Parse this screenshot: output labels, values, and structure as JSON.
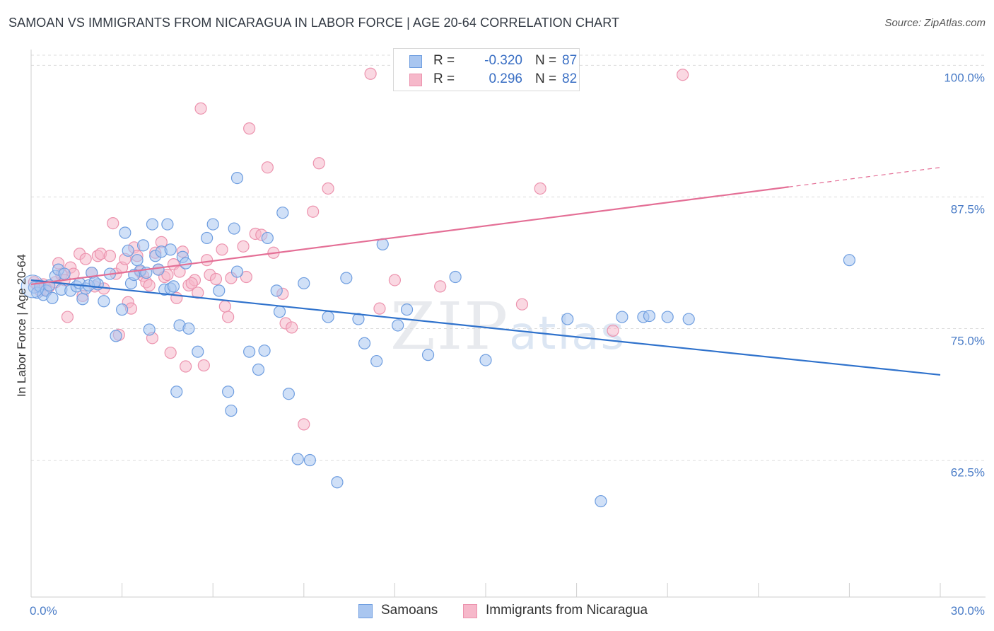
{
  "header": {
    "title": "SAMOAN VS IMMIGRANTS FROM NICARAGUA IN LABOR FORCE | AGE 20-64 CORRELATION CHART",
    "source": "Source: ZipAtlas.com"
  },
  "watermark": {
    "zip": "ZIP",
    "atlas": "atlas"
  },
  "legend_top": {
    "rows": [
      {
        "r_label": "R =",
        "r_value": "-0.320",
        "n_label": "N =",
        "n_value": "87"
      },
      {
        "r_label": "R =",
        "r_value": "0.296",
        "n_label": "N =",
        "n_value": "82"
      }
    ]
  },
  "colors": {
    "samoans_fill": "#a9c6f0",
    "samoans_stroke": "#6f9ee0",
    "samoans_line": "#2f72cc",
    "nicaragua_fill": "#f6b8ca",
    "nicaragua_stroke": "#ec93ae",
    "nicaragua_line": "#e46f96",
    "grid": "#dcdcdc",
    "axis_text": "#4a7cc7"
  },
  "chart_data": {
    "type": "scatter",
    "xlabel": "",
    "ylabel": "In Labor Force | Age 20-64",
    "xlim": [
      0,
      30
    ],
    "ylim": [
      49.5,
      101.5
    ],
    "x_tick_labels": [
      "0.0%",
      "30.0%"
    ],
    "y_ticks": [
      {
        "value": 62.5,
        "label": "62.5%"
      },
      {
        "value": 75.0,
        "label": "75.0%"
      },
      {
        "value": 87.5,
        "label": "87.5%"
      },
      {
        "value": 100.0,
        "label": "100.0%"
      }
    ],
    "grid": "horizontal dashed",
    "legend_position": "bottom-center",
    "series": [
      {
        "name": "Samoans",
        "trend": {
          "x": [
            0,
            30
          ],
          "y": [
            79.6,
            70.6
          ],
          "dashed_from": null
        },
        "points": [
          [
            0.1,
            78.9
          ],
          [
            0.2,
            78.4
          ],
          [
            0.3,
            79.0
          ],
          [
            0.4,
            78.2
          ],
          [
            0.5,
            78.6
          ],
          [
            0.6,
            79.1
          ],
          [
            0.7,
            77.9
          ],
          [
            0.8,
            80.0
          ],
          [
            0.9,
            80.6
          ],
          [
            1.0,
            78.7
          ],
          [
            1.1,
            80.2
          ],
          [
            1.3,
            78.6
          ],
          [
            1.5,
            79.0
          ],
          [
            1.6,
            79.3
          ],
          [
            1.7,
            77.8
          ],
          [
            1.8,
            78.8
          ],
          [
            2.0,
            80.3
          ],
          [
            2.2,
            79.2
          ],
          [
            2.4,
            77.6
          ],
          [
            2.6,
            80.2
          ],
          [
            2.8,
            74.3
          ],
          [
            3.0,
            76.8
          ],
          [
            3.1,
            84.1
          ],
          [
            3.2,
            82.4
          ],
          [
            3.3,
            79.3
          ],
          [
            3.5,
            81.5
          ],
          [
            3.6,
            80.5
          ],
          [
            3.7,
            82.9
          ],
          [
            3.8,
            80.3
          ],
          [
            3.9,
            74.9
          ],
          [
            4.0,
            84.9
          ],
          [
            4.1,
            81.9
          ],
          [
            4.2,
            80.6
          ],
          [
            4.3,
            82.3
          ],
          [
            4.4,
            78.7
          ],
          [
            4.5,
            84.9
          ],
          [
            4.6,
            82.5
          ],
          [
            4.6,
            78.8
          ],
          [
            4.8,
            69.0
          ],
          [
            4.9,
            75.3
          ],
          [
            5.0,
            81.8
          ],
          [
            5.1,
            81.2
          ],
          [
            5.2,
            75.0
          ],
          [
            5.5,
            72.8
          ],
          [
            5.8,
            83.6
          ],
          [
            6.0,
            84.9
          ],
          [
            6.2,
            78.6
          ],
          [
            6.5,
            69.0
          ],
          [
            6.6,
            67.2
          ],
          [
            6.7,
            84.5
          ],
          [
            6.8,
            80.4
          ],
          [
            6.8,
            89.3
          ],
          [
            7.2,
            72.8
          ],
          [
            7.5,
            71.1
          ],
          [
            7.7,
            72.9
          ],
          [
            7.8,
            83.6
          ],
          [
            8.1,
            78.6
          ],
          [
            8.2,
            76.6
          ],
          [
            8.3,
            86.0
          ],
          [
            8.5,
            68.8
          ],
          [
            8.8,
            62.6
          ],
          [
            9.0,
            79.3
          ],
          [
            9.2,
            62.5
          ],
          [
            9.8,
            76.1
          ],
          [
            10.1,
            60.4
          ],
          [
            10.4,
            79.8
          ],
          [
            10.8,
            75.9
          ],
          [
            11.0,
            73.6
          ],
          [
            11.4,
            71.9
          ],
          [
            11.6,
            83.0
          ],
          [
            12.1,
            75.3
          ],
          [
            12.4,
            76.8
          ],
          [
            13.1,
            72.5
          ],
          [
            14.0,
            79.9
          ],
          [
            15.0,
            72.0
          ],
          [
            17.7,
            75.9
          ],
          [
            18.8,
            58.6
          ],
          [
            19.5,
            76.1
          ],
          [
            20.2,
            76.1
          ],
          [
            20.4,
            76.2
          ],
          [
            21.0,
            76.1
          ],
          [
            21.7,
            75.9
          ],
          [
            27.0,
            81.5
          ],
          [
            1.9,
            79.1
          ],
          [
            2.1,
            79.4
          ],
          [
            3.4,
            80.1
          ],
          [
            4.7,
            79.0
          ]
        ]
      },
      {
        "name": "Immigrants from Nicaragua",
        "trend": {
          "x": [
            0,
            30
          ],
          "y": [
            79.2,
            90.3
          ],
          "dashed_from": 25.0
        },
        "points": [
          [
            0.1,
            79.4
          ],
          [
            0.2,
            79.1
          ],
          [
            0.3,
            78.6
          ],
          [
            0.4,
            79.2
          ],
          [
            0.5,
            78.7
          ],
          [
            0.6,
            79.0
          ],
          [
            0.8,
            79.4
          ],
          [
            0.9,
            81.2
          ],
          [
            1.0,
            80.1
          ],
          [
            1.1,
            79.6
          ],
          [
            1.2,
            76.1
          ],
          [
            1.3,
            80.8
          ],
          [
            1.4,
            80.2
          ],
          [
            1.6,
            82.1
          ],
          [
            1.7,
            78.1
          ],
          [
            1.8,
            81.6
          ],
          [
            2.0,
            80.3
          ],
          [
            2.1,
            79.0
          ],
          [
            2.2,
            81.9
          ],
          [
            2.3,
            82.1
          ],
          [
            2.4,
            78.8
          ],
          [
            2.6,
            81.9
          ],
          [
            2.7,
            85.0
          ],
          [
            2.8,
            80.2
          ],
          [
            2.9,
            74.4
          ],
          [
            3.0,
            80.8
          ],
          [
            3.1,
            81.6
          ],
          [
            3.2,
            77.5
          ],
          [
            3.3,
            76.9
          ],
          [
            3.4,
            82.7
          ],
          [
            3.5,
            81.9
          ],
          [
            3.6,
            80.4
          ],
          [
            3.7,
            80.0
          ],
          [
            3.8,
            79.4
          ],
          [
            3.9,
            79.1
          ],
          [
            4.0,
            74.1
          ],
          [
            4.1,
            82.2
          ],
          [
            4.2,
            80.6
          ],
          [
            4.3,
            83.2
          ],
          [
            4.4,
            79.9
          ],
          [
            4.5,
            80.1
          ],
          [
            4.6,
            72.7
          ],
          [
            4.7,
            81.1
          ],
          [
            4.8,
            77.9
          ],
          [
            4.9,
            80.4
          ],
          [
            5.0,
            82.3
          ],
          [
            5.1,
            71.4
          ],
          [
            5.2,
            79.1
          ],
          [
            5.4,
            79.6
          ],
          [
            5.5,
            78.4
          ],
          [
            5.6,
            95.9
          ],
          [
            5.7,
            71.5
          ],
          [
            5.8,
            81.5
          ],
          [
            5.9,
            80.1
          ],
          [
            6.1,
            79.7
          ],
          [
            6.3,
            82.5
          ],
          [
            6.4,
            77.1
          ],
          [
            6.5,
            76.1
          ],
          [
            6.6,
            79.8
          ],
          [
            7.0,
            82.8
          ],
          [
            7.2,
            94.0
          ],
          [
            7.4,
            84.0
          ],
          [
            7.6,
            83.9
          ],
          [
            7.8,
            90.3
          ],
          [
            8.0,
            82.2
          ],
          [
            8.3,
            78.3
          ],
          [
            8.4,
            75.5
          ],
          [
            8.6,
            75.1
          ],
          [
            9.0,
            65.9
          ],
          [
            9.3,
            86.1
          ],
          [
            9.8,
            88.3
          ],
          [
            11.2,
            99.2
          ],
          [
            11.5,
            76.9
          ],
          [
            12.0,
            79.6
          ],
          [
            13.5,
            79.0
          ],
          [
            16.2,
            77.3
          ],
          [
            16.8,
            88.3
          ],
          [
            19.2,
            74.8
          ],
          [
            21.5,
            99.1
          ],
          [
            9.5,
            90.7
          ],
          [
            7.1,
            79.9
          ],
          [
            5.3,
            79.3
          ]
        ]
      }
    ]
  }
}
